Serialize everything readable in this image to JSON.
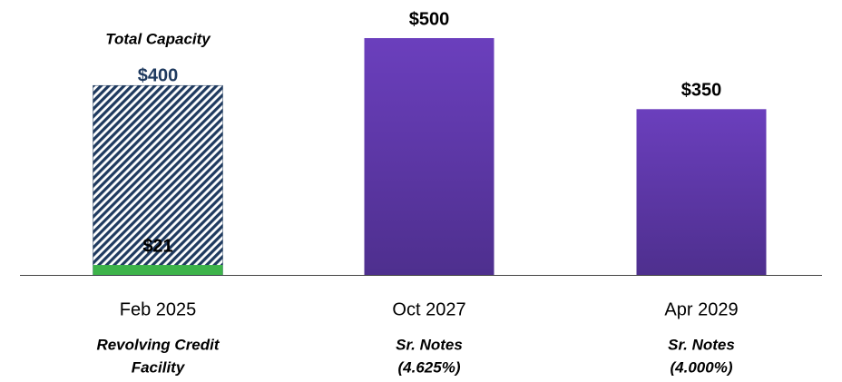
{
  "chart_data": {
    "type": "bar",
    "categories": [
      "Feb 2025",
      "Oct 2027",
      "Apr 2029"
    ],
    "descriptions": [
      [
        "Revolving Credit",
        "Facility"
      ],
      [
        "Sr. Notes",
        "(4.625%)"
      ],
      [
        "Sr. Notes",
        "(4.000%)"
      ]
    ],
    "values": [
      21,
      500,
      350
    ],
    "value_labels": [
      "$21",
      "$500",
      "$350"
    ],
    "colors": [
      "#3db34a",
      "#5d36a8",
      "#5d36a8"
    ],
    "capacity": {
      "index": 0,
      "value": 400,
      "label": "$400",
      "annotation": "Total Capacity",
      "color": "#1f3a5f"
    },
    "ylim": [
      0,
      500
    ]
  }
}
